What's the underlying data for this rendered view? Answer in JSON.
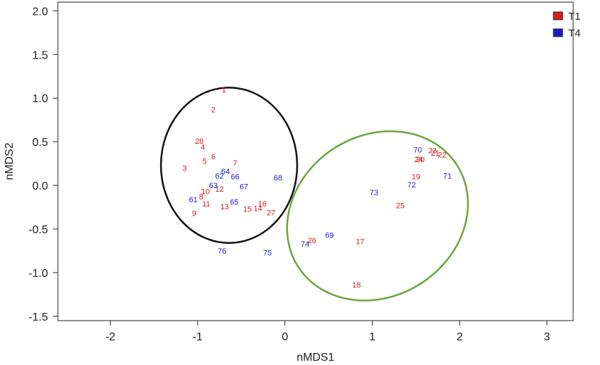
{
  "chart_data": {
    "type": "scatter",
    "xlabel": "nMDS1",
    "ylabel": "nMDS2",
    "xlim": [
      -2.6,
      3.3
    ],
    "ylim": [
      -1.55,
      2.1
    ],
    "x_ticks": [
      "-2",
      "-1",
      "0",
      "1",
      "2",
      "3"
    ],
    "x_tick_values": [
      -2,
      -1,
      0,
      1,
      2,
      3
    ],
    "y_ticks": [
      "2.0",
      "1.5",
      "1.0",
      "0.5",
      "0.0",
      "-0.5",
      "-1.0",
      "-1.5"
    ],
    "y_tick_values": [
      2.0,
      1.5,
      1.0,
      0.5,
      0.0,
      -0.5,
      -1.0,
      -1.5
    ],
    "legend_position": "top-right",
    "series": [
      {
        "name": "T1",
        "color": "#d42020",
        "points": [
          {
            "label": "1",
            "x": -0.7,
            "y": 1.1
          },
          {
            "label": "2",
            "x": -0.82,
            "y": 0.87
          },
          {
            "label": "28",
            "x": -0.98,
            "y": 0.51
          },
          {
            "label": "4",
            "x": -0.94,
            "y": 0.44
          },
          {
            "label": "5",
            "x": -0.92,
            "y": 0.28
          },
          {
            "label": "6",
            "x": -0.82,
            "y": 0.33
          },
          {
            "label": "7",
            "x": -0.57,
            "y": 0.26
          },
          {
            "label": "3",
            "x": -1.15,
            "y": 0.2
          },
          {
            "label": "10",
            "x": -0.91,
            "y": -0.07
          },
          {
            "label": "12",
            "x": -0.75,
            "y": -0.04
          },
          {
            "label": "8",
            "x": -0.96,
            "y": -0.13
          },
          {
            "label": "11",
            "x": -0.9,
            "y": -0.21
          },
          {
            "label": "9",
            "x": -1.04,
            "y": -0.32
          },
          {
            "label": "13",
            "x": -0.69,
            "y": -0.24
          },
          {
            "label": "15",
            "x": -0.43,
            "y": -0.27
          },
          {
            "label": "14",
            "x": -0.31,
            "y": -0.26
          },
          {
            "label": "16",
            "x": -0.26,
            "y": -0.21
          },
          {
            "label": "27",
            "x": -0.16,
            "y": -0.31
          },
          {
            "label": "23",
            "x": 1.69,
            "y": 0.4
          },
          {
            "label": "21",
            "x": 1.72,
            "y": 0.37
          },
          {
            "label": "22",
            "x": 1.8,
            "y": 0.35
          },
          {
            "label": "24",
            "x": 1.53,
            "y": 0.3
          },
          {
            "label": "20",
            "x": 1.55,
            "y": 0.3
          },
          {
            "label": "19",
            "x": 1.5,
            "y": 0.1
          },
          {
            "label": "25",
            "x": 1.32,
            "y": -0.23
          },
          {
            "label": "17",
            "x": 0.86,
            "y": -0.64
          },
          {
            "label": "26",
            "x": 0.31,
            "y": -0.63
          },
          {
            "label": "18",
            "x": 0.82,
            "y": -1.14
          }
        ]
      },
      {
        "name": "T4",
        "color": "#1c1ccc",
        "points": [
          {
            "label": "70",
            "x": 1.52,
            "y": 0.41
          },
          {
            "label": "71",
            "x": 1.86,
            "y": 0.11
          },
          {
            "label": "72",
            "x": 1.45,
            "y": 0.01
          },
          {
            "label": "73",
            "x": 1.02,
            "y": -0.08
          },
          {
            "label": "69",
            "x": 0.51,
            "y": -0.57
          },
          {
            "label": "74",
            "x": 0.23,
            "y": -0.67
          },
          {
            "label": "64",
            "x": -0.68,
            "y": 0.16
          },
          {
            "label": "62",
            "x": -0.75,
            "y": 0.11
          },
          {
            "label": "66",
            "x": -0.57,
            "y": 0.1
          },
          {
            "label": "68",
            "x": -0.08,
            "y": 0.09
          },
          {
            "label": "63",
            "x": -0.82,
            "y": 0.0
          },
          {
            "label": "67",
            "x": -0.47,
            "y": -0.01
          },
          {
            "label": "61",
            "x": -1.05,
            "y": -0.16
          },
          {
            "label": "65",
            "x": -0.58,
            "y": -0.19
          },
          {
            "label": "76",
            "x": -0.72,
            "y": -0.75
          },
          {
            "label": "75",
            "x": -0.2,
            "y": -0.77
          }
        ]
      }
    ],
    "ellipses": [
      {
        "group": "left-cluster",
        "color": "#111111",
        "cx": -0.64,
        "cy": 0.23,
        "rx": 0.78,
        "ry": 0.89
      },
      {
        "group": "right-cluster",
        "color": "#6aa63c",
        "cx": 1.06,
        "cy": -0.35,
        "rx": 1.08,
        "ry": 0.92,
        "angle_deg": -33
      }
    ]
  }
}
